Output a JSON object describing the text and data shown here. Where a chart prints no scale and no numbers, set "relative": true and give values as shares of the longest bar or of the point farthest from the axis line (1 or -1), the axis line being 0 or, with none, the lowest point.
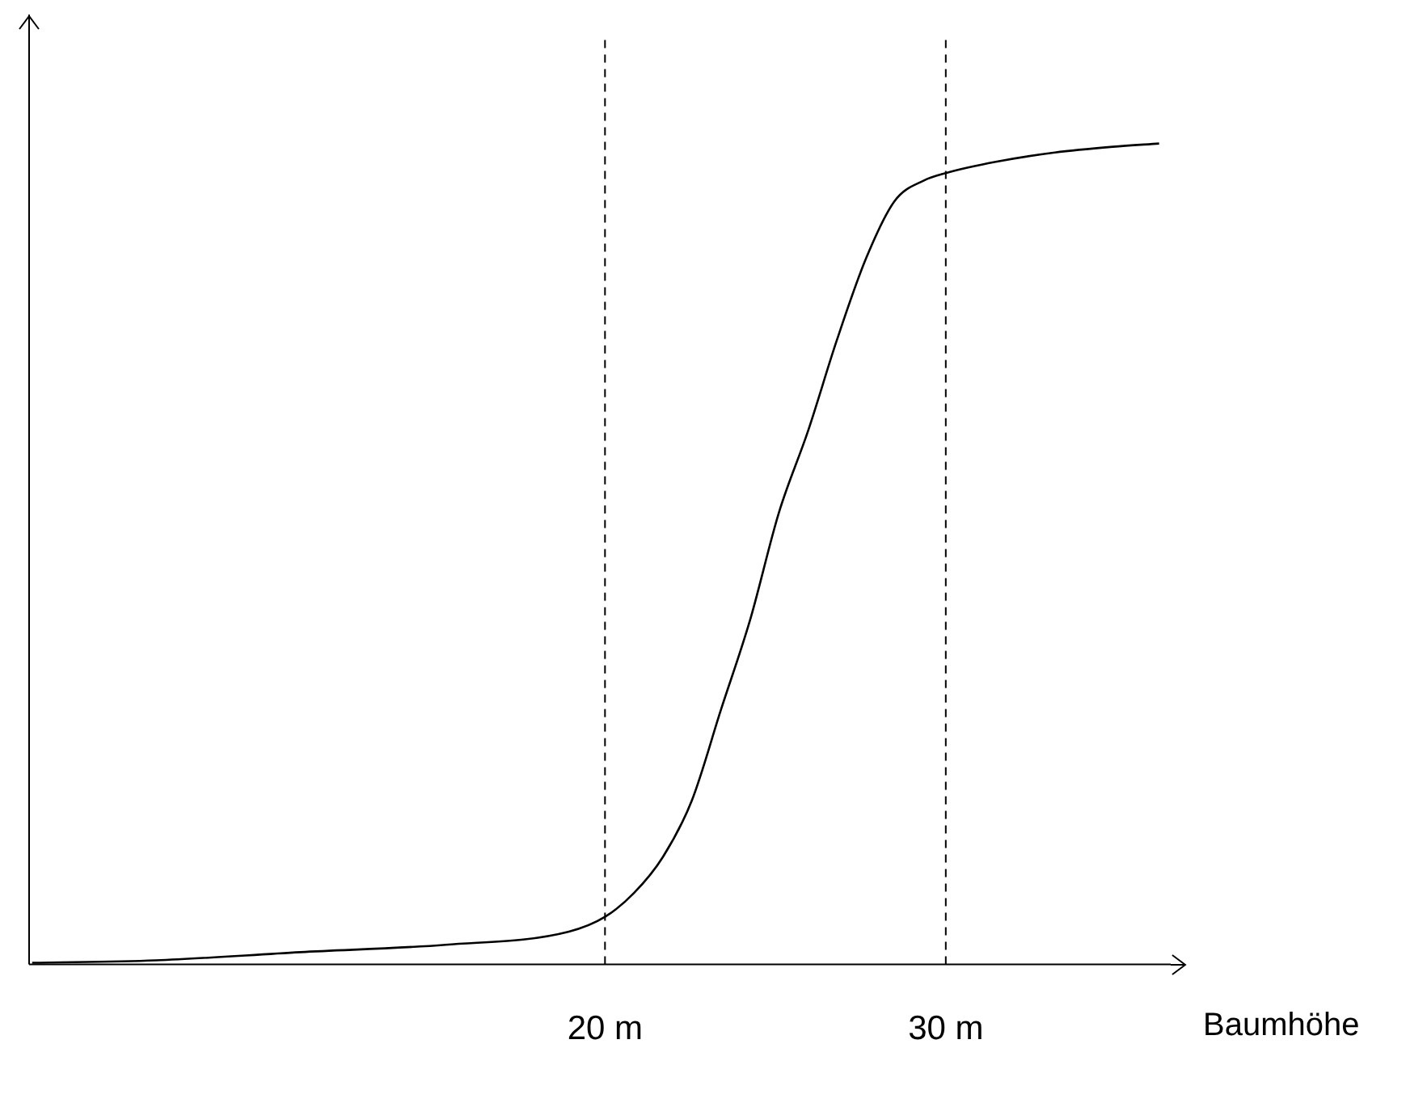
{
  "chart_data": {
    "type": "line",
    "relative": true,
    "xlabel": "Baumhöhe",
    "color": "#000000",
    "x": [
      3.19,
      6.81,
      11.06,
      15.32,
      18.94,
      20,
      20.85,
      21.7,
      22.55,
      23.4,
      24.26,
      25.1,
      25.96,
      26.8,
      27.66,
      28.5,
      29.36,
      30,
      31.5,
      33.2,
      34.9,
      36.26
    ],
    "values": [
      0.002,
      0.005,
      0.015,
      0.024,
      0.04,
      0.058,
      0.087,
      0.131,
      0.2,
      0.31,
      0.42,
      0.55,
      0.65,
      0.76,
      0.86,
      0.93,
      0.955,
      0.964,
      0.978,
      0.989,
      0.996,
      1
    ],
    "xlim": [
      3.1,
      36.6
    ],
    "xticks": [
      {
        "value": 20,
        "label": "20 m"
      },
      {
        "value": 30,
        "label": "30 m"
      }
    ],
    "ref_lines": [
      {
        "axis": "x",
        "value": 20,
        "line_style": "dashed",
        "color": "#000000"
      },
      {
        "axis": "x",
        "value": 30,
        "line_style": "dashed",
        "color": "#000000"
      }
    ]
  }
}
